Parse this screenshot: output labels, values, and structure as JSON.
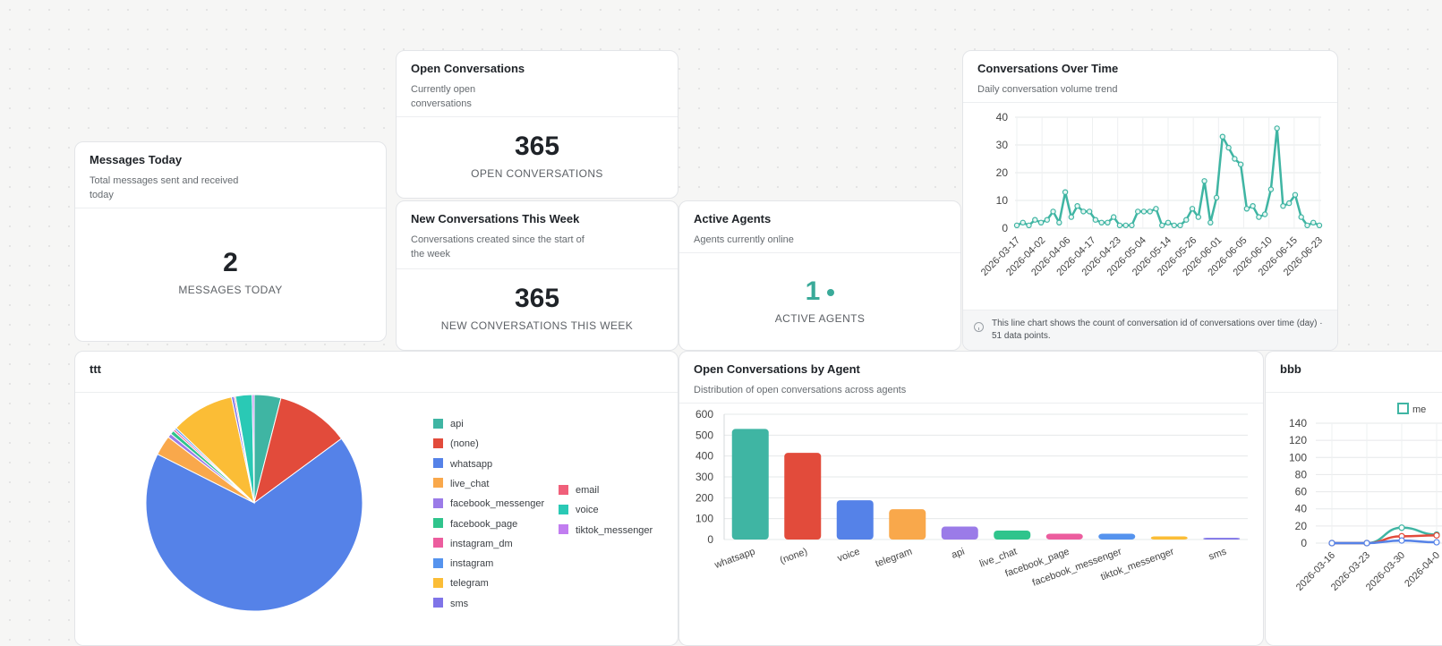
{
  "cards": {
    "messages_today": {
      "title": "Messages Today",
      "subtitle": "Total messages sent and received today",
      "value": "2",
      "label": "MESSAGES TODAY"
    },
    "open_conversations": {
      "title": "Open Conversations",
      "subtitle": "Currently open conversations",
      "value": "365",
      "label": "OPEN CONVERSATIONS"
    },
    "new_this_week": {
      "title": "New Conversations This Week",
      "subtitle": "Conversations created since the start of the week",
      "value": "365",
      "label": "NEW CONVERSATIONS THIS WEEK"
    },
    "active_agents": {
      "title": "Active Agents",
      "subtitle": "Agents currently online",
      "value": "1",
      "label": "ACTIVE AGENTS"
    },
    "over_time": {
      "title": "Conversations Over Time",
      "subtitle": "Daily conversation volume trend",
      "footnote": "This line chart shows the count of conversation id of conversations over time (day) · 51 data points."
    },
    "ttt": {
      "title": "ttt"
    },
    "by_agent": {
      "title": "Open Conversations by Agent",
      "subtitle": "Distribution of open conversations across agents"
    },
    "bbb": {
      "title": "bbb",
      "legend_partial": "me"
    }
  },
  "colors": {
    "teal": "#3fb5a3",
    "red": "#e24b3b",
    "blue": "#5582e8",
    "orange": "#f9a84b",
    "purple": "#9b7be8",
    "green": "#2fc48c",
    "pink": "#ec5d9e",
    "lightblue": "#5593ee",
    "yellow": "#fbbd36",
    "violet": "#7f74e8",
    "salmon": "#f0607a",
    "cyan": "#2ac9b5",
    "lilac": "#c17df0"
  },
  "chart_data": [
    {
      "type": "line",
      "title": "Conversations Over Time",
      "x_tick_labels": [
        "2026-03-17",
        "2026-04-02",
        "2026-04-06",
        "2026-04-17",
        "2026-04-23",
        "2026-05-04",
        "2026-05-14",
        "2026-05-26",
        "2026-06-01",
        "2026-06-05",
        "2026-06-10",
        "2026-06-15",
        "2026-06-23"
      ],
      "values": [
        1,
        2,
        1,
        3,
        2,
        3,
        6,
        2,
        13,
        4,
        8,
        6,
        6,
        3,
        2,
        2,
        4,
        1,
        1,
        1,
        6,
        6,
        6,
        7,
        1,
        2,
        1,
        1,
        3,
        7,
        4,
        17,
        2,
        11,
        33,
        29,
        25,
        23,
        7,
        8,
        4,
        5,
        14,
        36,
        8,
        9,
        12,
        4,
        1,
        2,
        1
      ],
      "ylim": [
        0,
        40
      ],
      "yticks": [
        0,
        10,
        20,
        30,
        40
      ],
      "grid": true
    },
    {
      "type": "pie",
      "title": "ttt",
      "slices": [
        {
          "name": "api",
          "value": 4
        },
        {
          "name": "(none)",
          "value": 11
        },
        {
          "name": "whatsapp",
          "value": 68
        },
        {
          "name": "live_chat",
          "value": 3
        },
        {
          "name": "facebook_messenger",
          "value": 0.6
        },
        {
          "name": "facebook_page",
          "value": 0.6
        },
        {
          "name": "instagram_dm",
          "value": 0.3
        },
        {
          "name": "instagram",
          "value": 0.3
        },
        {
          "name": "telegram",
          "value": 9.5
        },
        {
          "name": "sms",
          "value": 0.4
        },
        {
          "name": "email",
          "value": 0.2
        },
        {
          "name": "voice",
          "value": 2.5
        },
        {
          "name": "tiktok_messenger",
          "value": 0.3
        }
      ],
      "legend_position": "right"
    },
    {
      "type": "bar",
      "title": "Open Conversations by Agent",
      "categories": [
        "whatsapp",
        "(none)",
        "voice",
        "telegram",
        "api",
        "live_chat",
        "facebook_page",
        "facebook_messenger",
        "tiktok_messenger",
        "sms"
      ],
      "values": [
        530,
        415,
        188,
        145,
        62,
        43,
        28,
        28,
        15,
        8
      ],
      "ylim": [
        0,
        600
      ],
      "yticks": [
        0,
        100,
        200,
        300,
        400,
        500,
        600
      ],
      "grid": true
    },
    {
      "type": "line",
      "title": "bbb",
      "x_tick_labels": [
        "2026-03-16",
        "2026-03-23",
        "2026-03-30",
        "2026-04-0"
      ],
      "series": [
        {
          "values": [
            0,
            0,
            18,
            10
          ]
        },
        {
          "values": [
            0,
            0,
            8,
            9
          ]
        },
        {
          "values": [
            0,
            0,
            3,
            1
          ]
        }
      ],
      "ylim": [
        0,
        140
      ],
      "yticks": [
        0,
        20,
        40,
        60,
        80,
        100,
        120,
        140
      ],
      "grid": true
    }
  ]
}
